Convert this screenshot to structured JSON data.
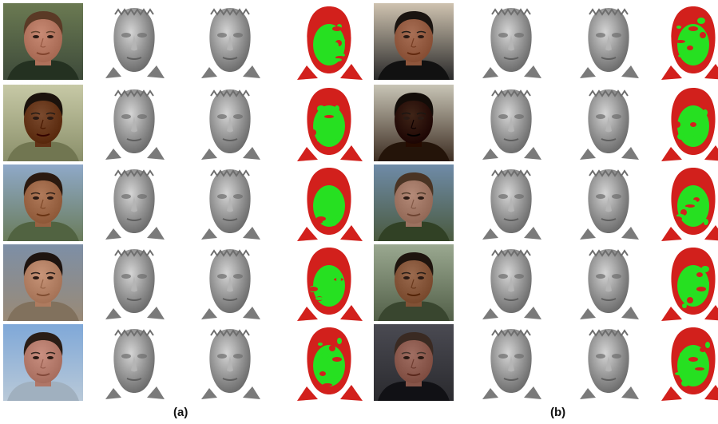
{
  "panels": [
    {
      "label": "(a)"
    },
    {
      "label": "(b)"
    }
  ],
  "row_count": 5,
  "columns_per_panel": [
    "photo",
    "scan",
    "scan",
    "overlay"
  ],
  "colors": {
    "mesh_gray": "#8f8f8f",
    "overlay_green": "#26e021",
    "overlay_red": "#d2201c"
  },
  "photos": [
    {
      "panel": 0,
      "skin": "#c88a74",
      "hair": "#5a3a26",
      "bg1": "#6b7a52",
      "bg2": "#3d4a3a"
    },
    {
      "panel": 0,
      "skin": "#7a4a2e",
      "hair": "#1b120c",
      "bg1": "#c7c9a6",
      "bg2": "#8a8f6a"
    },
    {
      "panel": 0,
      "skin": "#b07a5a",
      "hair": "#2b1a10",
      "bg1": "#8fa9c9",
      "bg2": "#6a7c5a"
    },
    {
      "panel": 0,
      "skin": "#c79478",
      "hair": "#1e1410",
      "bg1": "#7d8fa6",
      "bg2": "#9a8a76"
    },
    {
      "panel": 0,
      "skin": "#c98f80",
      "hair": "#2a1d16",
      "bg1": "#7fa8d8",
      "bg2": "#b9c9d8"
    },
    {
      "panel": 1,
      "skin": "#a86f55",
      "hair": "#1a1410",
      "bg1": "#cfc3b0",
      "bg2": "#2a2a2a"
    },
    {
      "panel": 1,
      "skin": "#3f2417",
      "hair": "#120c08",
      "bg1": "#c8c5b6",
      "bg2": "#3d2d22"
    },
    {
      "panel": 1,
      "skin": "#b48a78",
      "hair": "#4a3424",
      "bg1": "#6f8ba8",
      "bg2": "#4a5a3e"
    },
    {
      "panel": 1,
      "skin": "#9a6a4e",
      "hair": "#1e140e",
      "bg1": "#9aa890",
      "bg2": "#525f48"
    },
    {
      "panel": 1,
      "skin": "#a06e62",
      "hair": "#3a2a22",
      "bg1": "#4a4a52",
      "bg2": "#2a2a2e"
    }
  ]
}
